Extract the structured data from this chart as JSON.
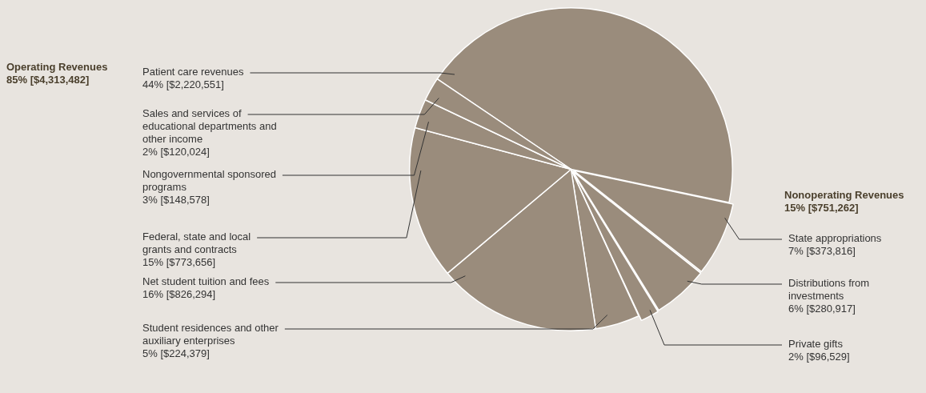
{
  "chart_data": {
    "type": "pie",
    "categories": [
      "Patient care revenues",
      "State appropriations",
      "Distributions from investments",
      "Private gifts",
      "Student residences and other auxiliary enterprises",
      "Net student tuition and fees",
      "Federal, state and local grants and contracts",
      "Nongovernmental sponsored programs",
      "Sales and services of educational departments and other income"
    ],
    "values": [
      2220551,
      373816,
      280917,
      96529,
      224379,
      826294,
      773656,
      148578,
      120024
    ],
    "value_labels": [
      "44% [$2,220,551]",
      "7% [$373,816]",
      "6% [$280,917]",
      "2% [$96,529]",
      "5% [$224,379]",
      "16% [$826,294]",
      "15% [$773,656]",
      "3% [$148,578]",
      "2% [$120,024]"
    ],
    "colors": [
      "#9a8c7c",
      "#9a8c7c",
      "#9a8c7c",
      "#9a8c7c",
      "#9a8c7c",
      "#9a8c7c",
      "#9a8c7c",
      "#9a8c7c",
      "#9a8c7c"
    ],
    "legend": false,
    "annotations": [
      "Operating Revenues\n85% [$4,313,482]",
      "Nonoperating Revenues\n15% [$751,262]"
    ]
  }
}
